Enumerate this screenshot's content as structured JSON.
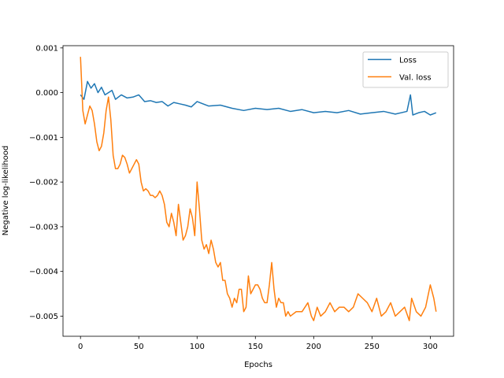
{
  "chart_data": {
    "type": "line",
    "xlabel": "Epochs",
    "ylabel": "Negative log-likelihood",
    "xlim": [
      -15,
      320
    ],
    "ylim": [
      -0.00545,
      0.00105
    ],
    "xticks": [
      0,
      50,
      100,
      150,
      200,
      250,
      300
    ],
    "xtick_labels": [
      "0",
      "50",
      "100",
      "150",
      "200",
      "250",
      "300"
    ],
    "yticks": [
      0.001,
      0.0,
      -0.001,
      -0.002,
      -0.003,
      -0.004,
      -0.005
    ],
    "ytick_labels": [
      "0.001",
      "0.000",
      "−0.001",
      "−0.002",
      "−0.003",
      "−0.004",
      "−0.005"
    ],
    "grid": false,
    "legend_position": "top-right",
    "series": [
      {
        "name": "Loss",
        "color": "#1f77b4",
        "x": [
          0,
          3,
          6,
          9,
          12,
          15,
          18,
          21,
          24,
          27,
          30,
          35,
          40,
          45,
          50,
          55,
          60,
          65,
          70,
          75,
          80,
          85,
          90,
          95,
          100,
          110,
          120,
          130,
          140,
          150,
          160,
          170,
          180,
          190,
          200,
          210,
          220,
          230,
          240,
          250,
          260,
          270,
          280,
          283,
          285,
          290,
          295,
          300,
          305
        ],
        "y": [
          -5e-05,
          -0.00015,
          0.00025,
          0.0001,
          0.0002,
          0.0,
          0.00012,
          -5e-05,
          0.0,
          5e-05,
          -0.00015,
          -5e-05,
          -0.00012,
          -0.0001,
          -5e-05,
          -0.0002,
          -0.00018,
          -0.00022,
          -0.0002,
          -0.0003,
          -0.00022,
          -0.00025,
          -0.00028,
          -0.00032,
          -0.0002,
          -0.0003,
          -0.00028,
          -0.00035,
          -0.0004,
          -0.00035,
          -0.00038,
          -0.00035,
          -0.00042,
          -0.00038,
          -0.00045,
          -0.00042,
          -0.00045,
          -0.0004,
          -0.00048,
          -0.00045,
          -0.00042,
          -0.00048,
          -0.00042,
          -5e-05,
          -0.0005,
          -0.00045,
          -0.00042,
          -0.0005,
          -0.00045
        ]
      },
      {
        "name": "Val. loss",
        "color": "#ff7f0e",
        "x": [
          0,
          2,
          4,
          6,
          8,
          10,
          12,
          14,
          16,
          18,
          20,
          22,
          24,
          26,
          28,
          30,
          32,
          34,
          36,
          38,
          40,
          42,
          44,
          46,
          48,
          50,
          52,
          54,
          56,
          58,
          60,
          62,
          64,
          66,
          68,
          70,
          72,
          74,
          76,
          78,
          80,
          82,
          84,
          86,
          88,
          90,
          92,
          94,
          96,
          98,
          100,
          102,
          104,
          106,
          108,
          110,
          112,
          114,
          116,
          118,
          120,
          122,
          124,
          126,
          128,
          130,
          132,
          134,
          136,
          138,
          140,
          142,
          144,
          146,
          148,
          150,
          152,
          154,
          156,
          158,
          160,
          162,
          164,
          166,
          168,
          170,
          172,
          174,
          176,
          178,
          180,
          185,
          190,
          195,
          198,
          200,
          203,
          206,
          210,
          214,
          218,
          222,
          226,
          230,
          234,
          238,
          242,
          246,
          250,
          254,
          258,
          262,
          266,
          270,
          274,
          278,
          282,
          284,
          288,
          292,
          296,
          300,
          303,
          305
        ],
        "y": [
          0.0008,
          -0.0004,
          -0.0007,
          -0.0005,
          -0.0003,
          -0.0004,
          -0.0007,
          -0.0011,
          -0.0013,
          -0.0012,
          -0.0009,
          -0.0004,
          -0.0001,
          -0.0006,
          -0.0014,
          -0.0017,
          -0.0017,
          -0.0016,
          -0.0014,
          -0.00145,
          -0.0016,
          -0.0018,
          -0.0017,
          -0.0016,
          -0.0015,
          -0.0016,
          -0.002,
          -0.0022,
          -0.00215,
          -0.0022,
          -0.0023,
          -0.0023,
          -0.00235,
          -0.0023,
          -0.0022,
          -0.0023,
          -0.0025,
          -0.0029,
          -0.003,
          -0.0027,
          -0.0029,
          -0.0032,
          -0.0025,
          -0.0029,
          -0.0033,
          -0.0032,
          -0.003,
          -0.0026,
          -0.0028,
          -0.0032,
          -0.002,
          -0.0026,
          -0.0033,
          -0.0035,
          -0.0034,
          -0.0036,
          -0.0033,
          -0.0035,
          -0.0038,
          -0.0039,
          -0.0038,
          -0.0042,
          -0.0042,
          -0.0045,
          -0.0046,
          -0.0048,
          -0.0046,
          -0.0047,
          -0.0044,
          -0.0044,
          -0.0049,
          -0.0048,
          -0.0041,
          -0.0045,
          -0.0044,
          -0.0043,
          -0.0043,
          -0.0044,
          -0.0046,
          -0.0047,
          -0.0047,
          -0.0043,
          -0.0038,
          -0.0044,
          -0.0048,
          -0.0046,
          -0.0047,
          -0.0047,
          -0.005,
          -0.0049,
          -0.005,
          -0.0049,
          -0.0049,
          -0.0047,
          -0.005,
          -0.0051,
          -0.0048,
          -0.005,
          -0.0049,
          -0.0047,
          -0.0049,
          -0.0048,
          -0.0048,
          -0.0049,
          -0.0048,
          -0.0045,
          -0.0046,
          -0.0047,
          -0.0049,
          -0.0046,
          -0.005,
          -0.0049,
          -0.0047,
          -0.005,
          -0.0049,
          -0.0048,
          -0.0051,
          -0.0046,
          -0.0049,
          -0.005,
          -0.0048,
          -0.0043,
          -0.0046,
          -0.0049
        ]
      }
    ]
  }
}
